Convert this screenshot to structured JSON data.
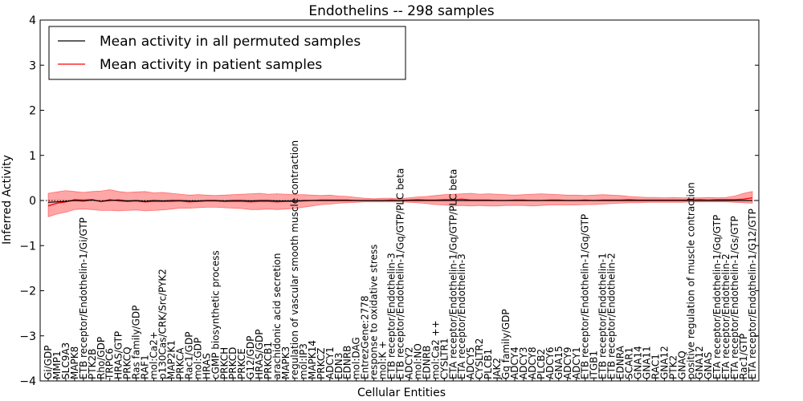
{
  "chart_data": {
    "type": "line",
    "title": "Endothelins -- 298 samples",
    "xlabel": "Cellular Entities",
    "ylabel": "Inferred Activity",
    "ylim": [
      -4,
      4
    ],
    "yticks": [
      -4,
      -3,
      -2,
      -1,
      0,
      1,
      2,
      3,
      4
    ],
    "ytick_labels": [
      "−4",
      "−3",
      "−2",
      "−1",
      "0",
      "1",
      "2",
      "3",
      "4"
    ],
    "legend": {
      "position": "top-left",
      "entries": [
        {
          "label": "Mean activity in all permuted samples",
          "color": "#000000"
        },
        {
          "label": "Mean activity in patient samples",
          "color": "#ff0000"
        }
      ]
    },
    "band_color": "#ff0000",
    "categories": [
      "Gi/GDP",
      "MMP1",
      "SLC9A3",
      "MAPK8",
      "ETB receptor/Endothelin-1/Gi/GTP",
      "PTK2B",
      "Rho/GDP",
      "TRPC6",
      "HRAS/GTP",
      "PRKCQ",
      "Ras family/GDP",
      "RAF1",
      "mol:Ca2+",
      "p130Cas/CRK/Src/PYK2",
      "MAP2K1",
      "PRKCA",
      "Rac1/GDP",
      "mol:GDP",
      "HRAS",
      "cGMP biosynthetic process",
      "PRKCH",
      "PRKCD",
      "PRKCE",
      "G12/GDP",
      "HRAS/GDP",
      "PRKCB1",
      "arachidonic acid secretion",
      "MAPK3",
      "regulation of vascular smooth muscle contraction",
      "mol:IP3",
      "MAPK14",
      "PRKCZ",
      "ADCY1",
      "EDN3",
      "EDNRB",
      "mol:DAG",
      "EntrezGene:2778",
      "response to oxidative stress",
      "mol:K +",
      "ETB receptor/Endothelin-3",
      "ETB receptor/Endothelin-1/Gq/GTP/PLC beta",
      "ADCY2",
      "mol:NO",
      "EDNRB",
      "mol:Ca2 ++",
      "CYSLTR1",
      "ETA receptor/Endothelin-1/Gq/GTP/PLC beta",
      "ETA receptor/Endothelin-3",
      "ADCY5",
      "CYSLTR2",
      "PLCB1",
      "JAK2",
      "Gq family/GDP",
      "ADCY4",
      "ADCY3",
      "ADCY8",
      "PLCB2",
      "ADCY6",
      "GNA15",
      "ADCY9",
      "ADCY1",
      "ETB receptor/Endothelin-1/Gq/GTP",
      "ITGB1",
      "ETB receptor/Endothelin-1",
      "ETB receptor/Endothelin-2",
      "EDNRA",
      "SCAR1",
      "GNA14",
      "GNA11",
      "RAC1",
      "GNA12",
      "PTK2",
      "GNAQ",
      "positive regulation of muscle contraction",
      "GNA12",
      "GNAS",
      "ETA receptor/Endothelin-1/Gq/GTP",
      "ETA receptor/Endothelin-2",
      "ETA receptor/Endothelin-1/Gs/GTP",
      "Rac1/GTP",
      "ETA receptor/Endothelin-1/G12/GTP"
    ],
    "series": [
      {
        "name": "Mean activity in all permuted samples",
        "color": "#000000",
        "values": [
          -0.04,
          -0.03,
          -0.02,
          0.0,
          -0.01,
          0.01,
          -0.02,
          0.0,
          0.01,
          -0.01,
          0.0,
          -0.02,
          0.0,
          -0.01,
          0.0,
          0.0,
          -0.01,
          -0.01,
          0.0,
          0.0,
          -0.01,
          0.0,
          0.0,
          -0.01,
          0.0,
          0.0,
          -0.01,
          -0.01,
          -0.01,
          0.0,
          0.0,
          0.0,
          0.0,
          0.0,
          0.0,
          0.0,
          0.0,
          0.0,
          0.0,
          0.0,
          0.0,
          0.0,
          0.0,
          0.0,
          0.0,
          0.0,
          0.0,
          0.0,
          0.0,
          0.0,
          0.0,
          0.0,
          0.0,
          0.0,
          0.0,
          0.0,
          0.0,
          0.0,
          0.0,
          0.0,
          0.0,
          0.0,
          0.0,
          0.0,
          0.0,
          0.0,
          0.0,
          0.0,
          0.0,
          0.0,
          0.0,
          0.0,
          0.0,
          0.0,
          0.0,
          0.0,
          0.0,
          0.0,
          0.0,
          0.0,
          0.0
        ]
      },
      {
        "name": "Mean activity in patient samples",
        "color": "#ff0000",
        "values": [
          -0.12,
          -0.06,
          -0.03,
          0.02,
          0.01,
          0.02,
          -0.02,
          0.02,
          -0.01,
          -0.02,
          -0.01,
          -0.03,
          -0.02,
          -0.02,
          -0.02,
          -0.01,
          -0.03,
          -0.02,
          -0.01,
          -0.01,
          -0.02,
          -0.02,
          -0.02,
          -0.03,
          -0.02,
          -0.02,
          -0.03,
          -0.02,
          -0.02,
          -0.01,
          0.0,
          0.01,
          0.01,
          0.01,
          0.01,
          0.0,
          0.0,
          0.0,
          0.0,
          0.01,
          0.0,
          0.01,
          0.02,
          0.01,
          0.01,
          0.02,
          0.02,
          0.03,
          0.01,
          0.01,
          0.01,
          0.0,
          0.0,
          0.01,
          0.01,
          0.0,
          0.0,
          0.01,
          0.01,
          0.0,
          0.0,
          0.01,
          0.0,
          0.01,
          0.01,
          0.01,
          0.02,
          0.01,
          0.01,
          0.01,
          0.01,
          0.01,
          0.01,
          0.01,
          0.02,
          0.01,
          0.02,
          0.02,
          0.02,
          0.03,
          0.06
        ]
      },
      {
        "name": "Patient activity band",
        "role": "band",
        "upper": [
          0.16,
          0.19,
          0.22,
          0.2,
          0.18,
          0.2,
          0.21,
          0.24,
          0.2,
          0.18,
          0.19,
          0.2,
          0.17,
          0.18,
          0.16,
          0.14,
          0.12,
          0.13,
          0.12,
          0.11,
          0.12,
          0.13,
          0.14,
          0.15,
          0.16,
          0.14,
          0.15,
          0.14,
          0.13,
          0.13,
          0.12,
          0.11,
          0.12,
          0.1,
          0.09,
          0.07,
          0.05,
          0.04,
          0.05,
          0.05,
          0.04,
          0.06,
          0.08,
          0.09,
          0.11,
          0.13,
          0.14,
          0.15,
          0.16,
          0.14,
          0.15,
          0.14,
          0.13,
          0.12,
          0.13,
          0.14,
          0.15,
          0.14,
          0.13,
          0.12,
          0.12,
          0.11,
          0.12,
          0.13,
          0.12,
          0.11,
          0.09,
          0.08,
          0.07,
          0.07,
          0.06,
          0.07,
          0.06,
          0.06,
          0.06,
          0.07,
          0.06,
          0.07,
          0.1,
          0.16,
          0.2
        ],
        "lower": [
          -0.36,
          -0.3,
          -0.26,
          -0.2,
          -0.19,
          -0.2,
          -0.22,
          -0.22,
          -0.23,
          -0.22,
          -0.21,
          -0.23,
          -0.22,
          -0.21,
          -0.19,
          -0.17,
          -0.17,
          -0.16,
          -0.15,
          -0.15,
          -0.16,
          -0.17,
          -0.18,
          -0.2,
          -0.2,
          -0.19,
          -0.2,
          -0.19,
          -0.18,
          -0.15,
          -0.12,
          -0.09,
          -0.08,
          -0.06,
          -0.05,
          -0.04,
          -0.03,
          -0.03,
          -0.03,
          -0.03,
          -0.03,
          -0.04,
          -0.05,
          -0.07,
          -0.09,
          -0.1,
          -0.12,
          -0.11,
          -0.12,
          -0.11,
          -0.12,
          -0.12,
          -0.11,
          -0.11,
          -0.11,
          -0.12,
          -0.11,
          -0.1,
          -0.1,
          -0.1,
          -0.1,
          -0.09,
          -0.09,
          -0.08,
          -0.07,
          -0.06,
          -0.05,
          -0.05,
          -0.04,
          -0.04,
          -0.04,
          -0.04,
          -0.04,
          -0.03,
          -0.03,
          -0.03,
          -0.03,
          -0.03,
          -0.04,
          -0.05,
          -0.06
        ]
      }
    ]
  }
}
